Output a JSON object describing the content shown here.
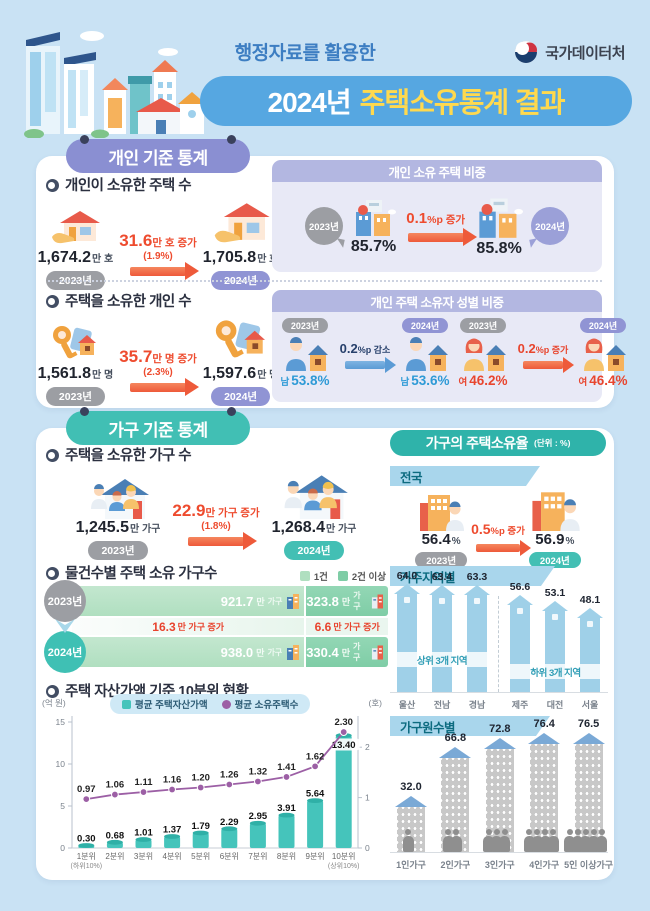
{
  "header": {
    "tagline": "행정자료를 활용한",
    "title_year": "2024년",
    "title_main": "주택소유통계 결과",
    "agency": "국가데이터처"
  },
  "colors": {
    "accent_red": "#ee4b2e",
    "accent_blue": "#5b9bd5",
    "teal": "#41bfb4",
    "lavender": "#8a8fd2",
    "bar_teal": "#45c4bb",
    "line_purple": "#9c5fa5",
    "seg_green_1": "#b0dfc0",
    "seg_green_2": "#7fcda6",
    "region_blue": "#9fd0e8",
    "building_gray": "#c8c8c8",
    "roof_blue": "#7aa9d6"
  },
  "icons": {
    "bullet-icon": "◐",
    "arrow-right-icon": "➔",
    "pin-icon": "●",
    "house-hand-icon": "house on hand",
    "key-house-icon": "key with house tag",
    "buildings-icon": "city buildings",
    "man-house-icon": "man with house",
    "woman-house-icon": "woman with house",
    "family-house-icon": "family with house",
    "building-person-icon": "building with person",
    "taegeuk-icon": "government emblem"
  },
  "individual_section": {
    "title": "개인 기준 통계",
    "owned_houses": {
      "bullet_title": "개인이 소유한 주택 수",
      "left": {
        "num": "1,674.2",
        "unit": "만 호",
        "year": "2023년"
      },
      "change": {
        "num": "31.6",
        "unit": "만 호 증가",
        "pct": "(1.9%)"
      },
      "right": {
        "num": "1,705.8",
        "unit": "만 호",
        "year": "2024년"
      }
    },
    "ownership_share": {
      "head": "개인 소유 주택 비중",
      "left": {
        "year": "2023년",
        "value": "85.7%"
      },
      "change": {
        "num": "0.1",
        "unit": "%p 증가"
      },
      "right": {
        "year": "2024년",
        "value": "85.8%"
      }
    },
    "owners_count": {
      "bullet_title": "주택을 소유한 개인 수",
      "left": {
        "num": "1,561.8",
        "unit": "만 명",
        "year": "2023년"
      },
      "change": {
        "num": "35.7",
        "unit": "만 명 증가",
        "pct": "(2.3%)"
      },
      "right": {
        "num": "1,597.6",
        "unit": "만 명",
        "year": "2024년"
      }
    },
    "gender_share": {
      "head": "개인 주택 소유자 성별 비중",
      "male": {
        "y1": "2023년",
        "y2": "2024년",
        "v1_label": "남",
        "v1_value": "53.8%",
        "v2_label": "남",
        "v2_value": "53.6%",
        "change": {
          "num": "0.2",
          "unit": "%p 감소"
        }
      },
      "female": {
        "y1": "2023년",
        "y2": "2024년",
        "v1_label": "여",
        "v1_value": "46.2%",
        "v2_label": "여",
        "v2_value": "46.4%",
        "change": {
          "num": "0.2",
          "unit": "%p 증가"
        }
      }
    }
  },
  "household_section": {
    "title": "가구 기준 통계",
    "owning_households": {
      "bullet_title": "주택을 소유한 가구 수",
      "left": {
        "num": "1,245.5",
        "unit": "만 가구",
        "year": "2023년"
      },
      "change": {
        "num": "22.9",
        "unit": "만 가구 증가",
        "pct": "(1.8%)"
      },
      "right": {
        "num": "1,268.4",
        "unit": "만 가구",
        "year": "2024년"
      }
    }
  },
  "sidebar": {
    "head": "가구의 주택소유율",
    "unit_note": "(단위 : %)",
    "nation": {
      "band": "전국",
      "left": {
        "value": "56.4",
        "pct": "%",
        "year": "2023년"
      },
      "change": {
        "num": "0.5",
        "unit": "%p 증가"
      },
      "right": {
        "value": "56.9",
        "pct": "%",
        "year": "2024년"
      }
    }
  },
  "chart_data": [
    {
      "type": "stacked-bar",
      "title": "물건수별 주택 소유 가구수",
      "legend": [
        "1건",
        "2건 이상"
      ],
      "rows": [
        {
          "year": "2023년",
          "segments": [
            {
              "num": "921.7",
              "suffix": "만",
              "unit": "가구",
              "value": 921.7
            },
            {
              "num": "323.8",
              "suffix": "만",
              "unit": "가구",
              "value": 323.8
            }
          ]
        },
        {
          "year": "2024년",
          "segments": [
            {
              "num": "938.0",
              "suffix": "만",
              "unit": "가구",
              "value": 938.0
            },
            {
              "num": "330.4",
              "suffix": "만",
              "unit": "가구",
              "value": 330.4
            }
          ]
        }
      ],
      "changes": [
        {
          "num": "16.3",
          "unit": "만 가구 증가"
        },
        {
          "num": "6.6",
          "unit": "만 가구 증가"
        }
      ]
    },
    {
      "type": "combo",
      "title": "주택 자산가액 기준 10분위 현황",
      "categories": [
        "1분위",
        "2분위",
        "3분위",
        "4분위",
        "5분위",
        "6분위",
        "7분위",
        "8분위",
        "9분위",
        "10분위"
      ],
      "category_notes": {
        "0": "(하위10%)",
        "9": "(상위10%)"
      },
      "bar_series": {
        "name": "평균 주택자산가액",
        "values": [
          0.3,
          0.68,
          1.01,
          1.37,
          1.79,
          2.29,
          2.95,
          3.91,
          5.64,
          13.4
        ],
        "color": "#45c4bb"
      },
      "line_series": {
        "name": "평균 소유주택수",
        "values": [
          0.97,
          1.06,
          1.11,
          1.16,
          1.2,
          1.26,
          1.32,
          1.41,
          1.62,
          2.3
        ],
        "color": "#9c5fa5"
      },
      "left_axis": {
        "label": "(억 원)",
        "ticks": [
          0,
          5,
          10,
          15
        ],
        "max": 15
      },
      "right_axis": {
        "label": "(호)",
        "ticks": [
          0,
          1,
          2
        ],
        "max": 2.5
      },
      "grid": false,
      "legend_position": "top"
    },
    {
      "type": "bar",
      "title": "거주지역별",
      "groups": [
        {
          "band": "상위 3개 지역",
          "categories": [
            "울산",
            "전남",
            "경남"
          ],
          "values": [
            64.0,
            63.4,
            63.3
          ]
        },
        {
          "band": "하위 3개 지역",
          "categories": [
            "제주",
            "대전",
            "서울"
          ],
          "values": [
            56.6,
            53.1,
            48.1
          ]
        }
      ],
      "bar_color": "#9fd0e8"
    },
    {
      "type": "bar",
      "title": "가구원수별",
      "categories": [
        "1인가구",
        "2인가구",
        "3인가구",
        "4인가구",
        "5인 이상가구"
      ],
      "values": [
        32.0,
        66.8,
        72.8,
        76.4,
        76.5
      ],
      "people_counts": [
        1,
        2,
        3,
        4,
        5
      ],
      "bar_color": "#c8c8c8"
    }
  ]
}
